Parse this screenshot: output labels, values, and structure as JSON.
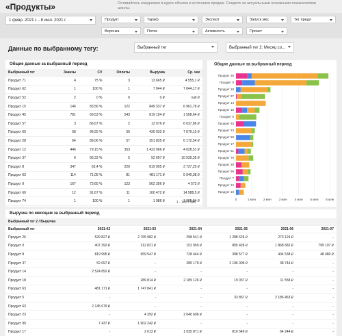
{
  "header": {
    "title": "«Продукты»",
    "subtitle": "Оставайтесь ежедневно в курсе объема и источника продаж. Следите за актуальными основными показателями школы."
  },
  "filters": {
    "date_range": "1 февр. 2021 г. - 8 июл. 2021 г.",
    "dropdowns": [
      "Продукт",
      "Тариф",
      "Эксперт",
      "Запуск мес",
      "Тег предл",
      "Воронка",
      "Поток",
      "Активность",
      "Проект"
    ]
  },
  "section": {
    "title": "Данные по выбранному тегу:",
    "selectors": [
      "Выбранный тег",
      "Выбранный тег 2: Месяц со..."
    ]
  },
  "summary_table": {
    "title": "Общие данные за выбранный период",
    "columns": [
      "Выбранный тег",
      "Заказы",
      "CV",
      "Оплаты",
      "Выручка",
      "Ср. чек"
    ],
    "rows": [
      [
        "Продукт 71",
        "4",
        "75 %",
        "3",
        "13 665 ₽",
        "4 555,1 ₽"
      ],
      [
        "Продукт 62",
        "1",
        "100 %",
        "1",
        "7 044 ₽",
        "7 044,17 ₽"
      ],
      [
        "Продукт 52",
        "2",
        "0 %",
        "0",
        "0 ₽",
        "null ₽"
      ],
      [
        "Продукт 15",
        "146",
        "83,56 %",
        "122",
        "849 337 ₽",
        "6 961,78 ₽"
      ],
      [
        "Продукт 45",
        "781",
        "69,53 %",
        "543",
        "819 194 ₽",
        "1 508,64 ₽"
      ],
      [
        "Продукт 57",
        "3",
        "66,67 %",
        "2",
        "12 076 ₽",
        "6 037,86 ₽"
      ],
      [
        "Продукт 69",
        "58",
        "96,55 %",
        "56",
        "430 032 ₽",
        "7 679,15 ₽"
      ],
      [
        "Продукт 28",
        "64",
        "89,06 %",
        "57",
        "351 835 ₽",
        "6 172,54 ₽"
      ],
      [
        "Продукт 12",
        "446",
        "79,15 %",
        "353",
        "1 422 066 ₽",
        "4 028,51 ₽"
      ],
      [
        "Продукт 37",
        "6",
        "83,33 %",
        "5",
        "52 697 ₽",
        "10 539,35 ₽"
      ],
      [
        "Продукт 8",
        "347",
        "63,4 %",
        "220",
        "819 995 ₽",
        "3 727,25 ₽"
      ],
      [
        "Продукт 63",
        "114",
        "71,05 %",
        "81",
        "481 171 ₽",
        "5 940,38 ₽"
      ],
      [
        "Продукт 9",
        "167",
        "73,65 %",
        "123",
        "562 356 ₽",
        "4 572 ₽"
      ],
      [
        "Продукт 60",
        "12",
        "91,67 %",
        "11",
        "160 472 ₽",
        "14 588,5 ₽"
      ],
      [
        "Продукт 74",
        "1",
        "100 %",
        "1",
        "1 986 ₽",
        "1 985,84 ₽"
      ]
    ],
    "pagination": "1 - 100 / 158"
  },
  "chart_data": {
    "type": "bar",
    "orientation": "horizontal",
    "stacked": true,
    "title": "Общие данные за выбранный период",
    "categories": [
      "Продукт 26",
      "Продукт 0",
      "Продукт 18",
      "Продукт 37",
      "Продукт 14",
      "Продукт 15",
      "Продукт 5",
      "Продукт 63",
      "Продукт 23",
      "Продукт 90",
      "Продукт 17",
      "Продукт 61",
      "Продукт 79",
      "Продукт 28",
      "Продукт 69",
      "Продукт 7",
      "Продукт 12",
      "Продукт 10"
    ],
    "series": [
      {
        "color": "#e8338f",
        "values": [
          700000,
          400000,
          0,
          50000,
          0,
          400000,
          0,
          480000,
          0,
          10000,
          0,
          150000,
          0,
          350000,
          430000,
          200000,
          300000,
          0
        ]
      },
      {
        "color": "#4a86e8",
        "values": [
          300000,
          800000,
          300000,
          0,
          0,
          300000,
          0,
          800000,
          0,
          900000,
          0,
          400000,
          0,
          0,
          0,
          300000,
          0,
          200000
        ]
      },
      {
        "color": "#f4a83a",
        "values": [
          4200000,
          3300000,
          1700000,
          300000,
          1900000,
          500000,
          200000,
          0,
          1000000,
          0,
          1000000,
          200000,
          800000,
          500000,
          300000,
          0,
          300000,
          300000
        ]
      },
      {
        "color": "#8bc34a",
        "values": [
          700000,
          800000,
          200000,
          1500000,
          0,
          300000,
          1100000,
          0,
          200000,
          200000,
          100000,
          200000,
          300000,
          0,
          200000,
          300000,
          0,
          0
        ]
      }
    ],
    "xlim": [
      0,
      6200000
    ],
    "xticks": [
      0,
      {
        "value": 1000000,
        "label": "1 млн"
      },
      {
        "value": 2000000,
        "label": "2 млн"
      },
      {
        "value": 3000000,
        "label": "3 млн"
      },
      {
        "value": 4000000,
        "label": "4 млн"
      },
      {
        "value": 5000000,
        "label": "5 млн"
      },
      {
        "value": 6000000,
        "label": "6 млн"
      }
    ],
    "grid": true
  },
  "monthly_table": {
    "title": "Выручка по месяцам за выбранный период",
    "group_header": "Выбранный тег 2 / Выручка",
    "columns": [
      "Выбранный тег",
      "2021-02",
      "2021-03",
      "2021-04",
      "2021-05",
      "2021-06",
      "2021-07"
    ],
    "rows": [
      [
        "Продукт 26",
        "529 827 ₽",
        "2 765 982 ₽",
        "298 541 ₽",
        "1 288 626 ₽",
        "273 124 ₽",
        "-"
      ],
      [
        "Продукт 0",
        "407 392 ₽",
        "312 821 ₽",
        "152 050 ₽",
        "805 428 ₽",
        "1 868 682 ₽",
        "799 107 ₽"
      ],
      [
        "Продукт 8",
        "819 995 ₽",
        "659 547 ₽",
        "728 444 ₽",
        "398 577 ₽",
        "434 538 ₽",
        "48 480 ₽"
      ],
      [
        "Продукт 37",
        "52 697 ₽",
        "-",
        "285 179 ₽",
        "2 196 009 ₽",
        "38 744 ₽",
        "-"
      ],
      [
        "Продукт 14",
        "2 524 892 ₽",
        "-",
        "-",
        "-",
        "-",
        "-"
      ],
      [
        "Продукт 18",
        "-",
        "289 814 ₽",
        "2 189 126 ₽",
        "19 037 ₽",
        "11 558 ₽",
        "-"
      ],
      [
        "Продукт 63",
        "481 171 ₽",
        "1 747 841 ₽",
        "-",
        "-",
        "-",
        "-"
      ],
      [
        "Продукт 5",
        "-",
        "-",
        "-",
        "33 857 ₽",
        "2 185 463 ₽",
        "-"
      ],
      [
        "Продукт 63",
        "2 145 679 ₽",
        "-",
        "-",
        "-",
        "-",
        "-"
      ],
      [
        "Продукт 23",
        "-",
        "4 392 ₽",
        "2 040 696 ₽",
        "-",
        "-",
        "-"
      ],
      [
        "Продукт 90",
        "7 437 ₽",
        "1 902 242 ₽",
        "-",
        "-",
        "-",
        "-"
      ],
      [
        "Продукт 17",
        "-",
        "2 013 ₽",
        "1 035 871 ₽",
        "816 549 ₽",
        "64 244 ₽",
        "-"
      ]
    ]
  }
}
